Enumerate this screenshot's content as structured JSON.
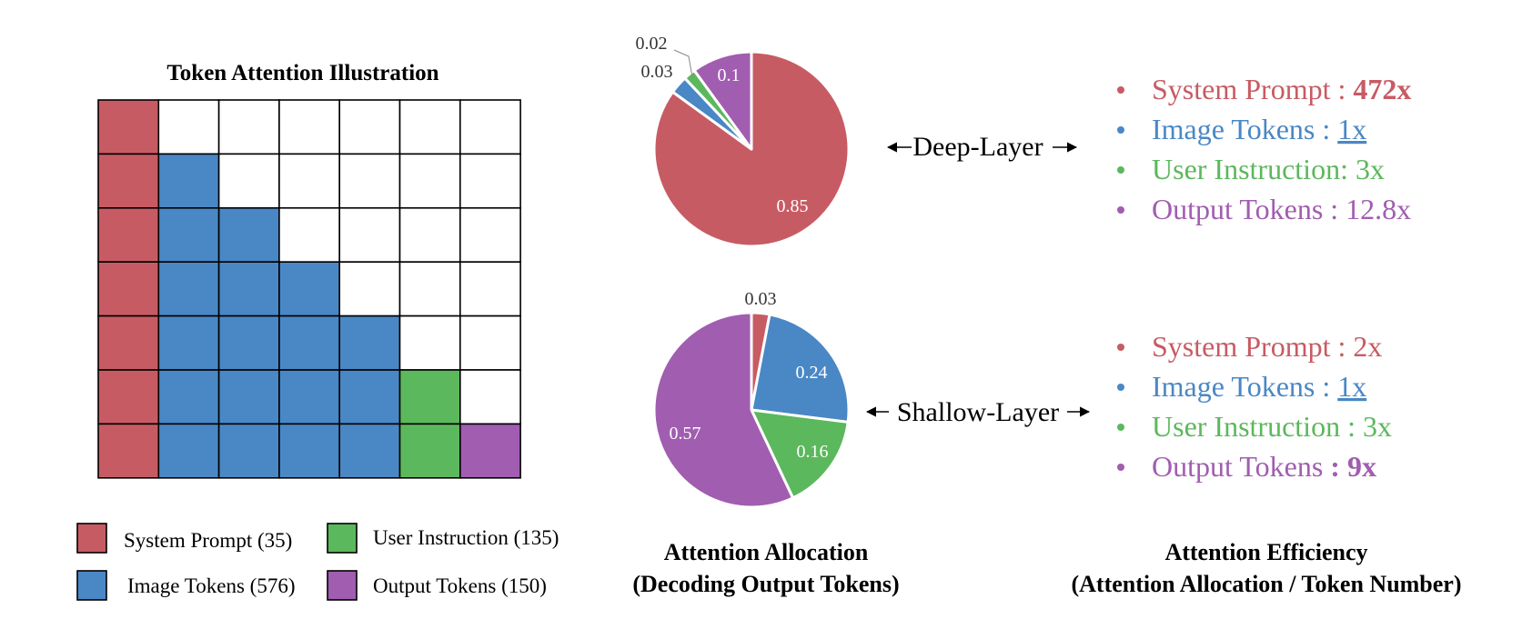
{
  "colors": {
    "system": "#c75b63",
    "image": "#4a87c5",
    "user": "#5cb85c",
    "output": "#a15db0"
  },
  "grid": {
    "title": "Token Attention Illustration",
    "rows": [
      [
        "system",
        "",
        "",
        "",
        "",
        "",
        ""
      ],
      [
        "system",
        "image",
        "",
        "",
        "",
        "",
        ""
      ],
      [
        "system",
        "image",
        "image",
        "",
        "",
        "",
        ""
      ],
      [
        "system",
        "image",
        "image",
        "image",
        "",
        "",
        ""
      ],
      [
        "system",
        "image",
        "image",
        "image",
        "image",
        "",
        ""
      ],
      [
        "system",
        "image",
        "image",
        "image",
        "image",
        "user",
        ""
      ],
      [
        "system",
        "image",
        "image",
        "image",
        "image",
        "user",
        "output"
      ]
    ]
  },
  "legend": [
    {
      "key": "system",
      "label": "System Prompt (35)"
    },
    {
      "key": "user",
      "label": "User Instruction (135)"
    },
    {
      "key": "image",
      "label": "Image Tokens (576)"
    },
    {
      "key": "output",
      "label": "Output Tokens (150)"
    }
  ],
  "chart_data": [
    {
      "type": "pie",
      "name": "Deep-Layer",
      "slices": [
        {
          "key": "system",
          "value": 0.85,
          "label": "0.85"
        },
        {
          "key": "image",
          "value": 0.03,
          "label": "0.03"
        },
        {
          "key": "user",
          "value": 0.02,
          "label": "0.02"
        },
        {
          "key": "output",
          "value": 0.1,
          "label": "0.1"
        }
      ]
    },
    {
      "type": "pie",
      "name": "Shallow-Layer",
      "slices": [
        {
          "key": "system",
          "value": 0.03,
          "label": "0.03"
        },
        {
          "key": "image",
          "value": 0.24,
          "label": "0.24"
        },
        {
          "key": "user",
          "value": 0.16,
          "label": "0.16"
        },
        {
          "key": "output",
          "value": 0.57,
          "label": "0.57"
        }
      ]
    }
  ],
  "layers": {
    "deep": "Deep-Layer",
    "shallow": "Shallow-Layer"
  },
  "allocation_caption": {
    "line1": "Attention Allocation",
    "line2": "(Decoding Output Tokens)"
  },
  "efficiency_caption": {
    "line1": "Attention Efficiency",
    "line2": "(Attention Allocation / Token Number)"
  },
  "efficiency": {
    "deep": [
      {
        "key": "system",
        "label": "System Prompt : ",
        "value": "472x",
        "style": "bold"
      },
      {
        "key": "image",
        "label": "Image Tokens : ",
        "value": "1x",
        "style": "underline"
      },
      {
        "key": "user",
        "label": "User Instruction: ",
        "value": "3x",
        "style": "normal"
      },
      {
        "key": "output",
        "label": "Output Tokens : ",
        "value": "12.8x",
        "style": "normal"
      }
    ],
    "shallow": [
      {
        "key": "system",
        "label": "System Prompt : ",
        "value": "2x",
        "style": "normal"
      },
      {
        "key": "image",
        "label": "Image Tokens : ",
        "value": "1x",
        "style": "underline"
      },
      {
        "key": "user",
        "label": "User Instruction : ",
        "value": "3x",
        "style": "normal"
      },
      {
        "key": "output",
        "label": "Output Tokens ",
        "value": ": 9x",
        "style": "bold"
      }
    ]
  }
}
